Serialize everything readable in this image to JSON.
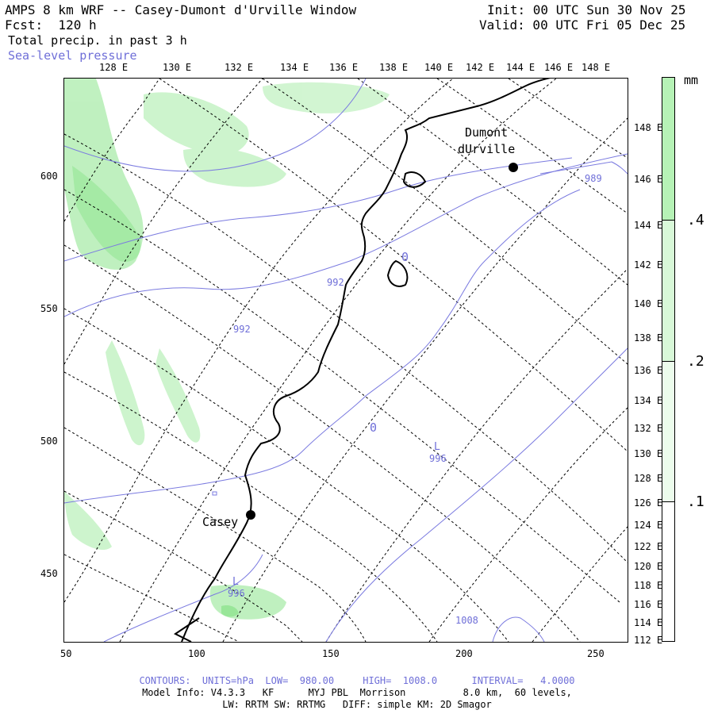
{
  "header": {
    "title": "AMPS 8 km WRF -- Casey-Dumont d'Urville Window",
    "forecast": "Fcst:  120 h",
    "init": "Init: 00 UTC Sun 30 Nov 25",
    "valid": "Valid: 00 UTC Fri 05 Dec 25",
    "field1": "Total precip. in past 3 h",
    "field2": "Sea-level pressure"
  },
  "map": {
    "top_lon_labels": [
      "128 E",
      "130 E",
      "132 E",
      "134 E",
      "136 E",
      "138 E",
      "140 E",
      "142 E",
      "144 E",
      "146 E",
      "148 E"
    ],
    "right_lon_labels": [
      "148 E",
      "146 E",
      "144 E",
      "142 E",
      "140 E",
      "138 E",
      "136 E",
      "134 E",
      "132 E",
      "130 E",
      "128 E",
      "126 E",
      "124 E",
      "122 E",
      "120 E",
      "118 E",
      "116 E",
      "114 E",
      "112 E"
    ],
    "y_axis_labels": [
      "600",
      "550",
      "500",
      "450"
    ],
    "x_axis_labels": [
      "50",
      "100",
      "150",
      "200",
      "250"
    ],
    "stations": [
      {
        "name": "Casey",
        "label": "Casey"
      },
      {
        "name": "Dumont d'Urville",
        "label_line1": "Dumont",
        "label_line2": "dUrville"
      }
    ],
    "isobar_labels": [
      "992",
      "992",
      "996",
      "996",
      "1008",
      "989"
    ],
    "low_markers": [
      "L",
      "L"
    ],
    "misc_marks": [
      "0",
      "0"
    ]
  },
  "colorbar": {
    "unit": "mm",
    "labels": [
      ".4",
      ".2",
      ".1"
    ],
    "fill_color": "#b6f2b6",
    "border_color": "#000000"
  },
  "footer": {
    "contours": "CONTOURS:  UNITS=hPa  LOW=  980.00     HIGH=  1008.0      INTERVAL=   4.0000",
    "model_info": "Model Info: V4.3.3   KF      MYJ PBL  Morrison          8.0 km,  60 levels,",
    "physics": "LW: RRTM SW: RRTMG   DIFF: simple KM: 2D Smagor"
  },
  "colors": {
    "precip_light": "#b9efb9",
    "precip_mid": "#9ce89c",
    "isobar": "#7b7be0",
    "coast": "#000000"
  }
}
